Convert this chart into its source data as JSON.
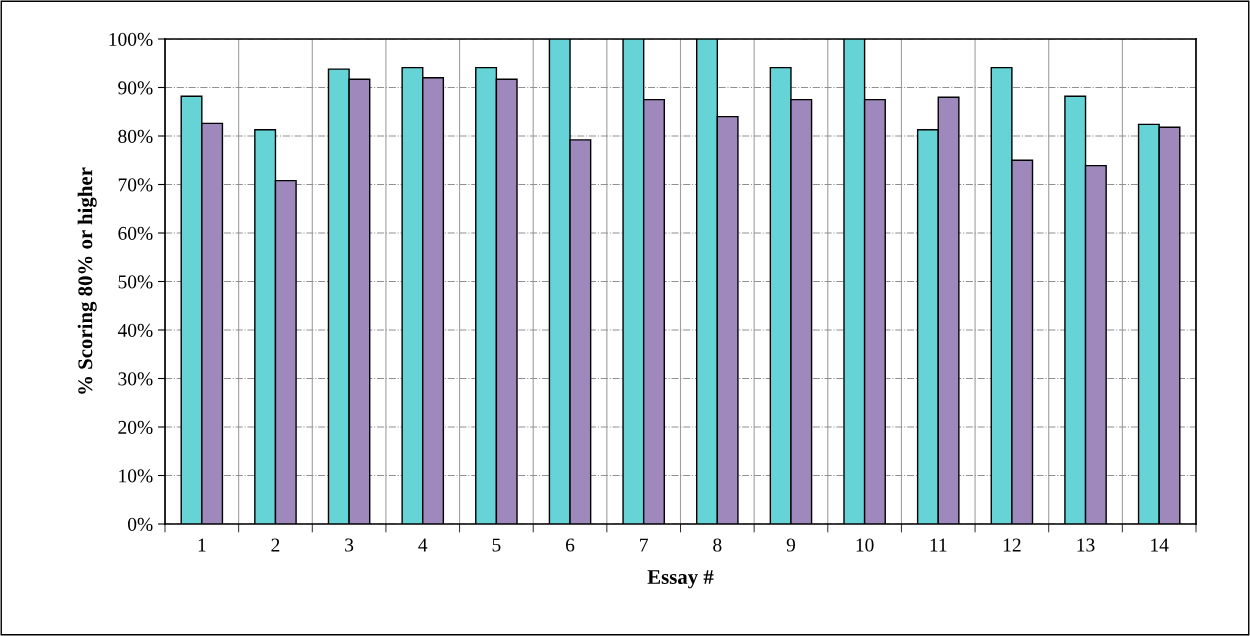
{
  "chart_data": {
    "type": "bar",
    "xlabel": "Essay #",
    "ylabel": "% Scoring 80% or higher",
    "categories": [
      "1",
      "2",
      "3",
      "4",
      "5",
      "6",
      "7",
      "8",
      "9",
      "10",
      "11",
      "12",
      "13",
      "14"
    ],
    "series": [
      {
        "color": "#66d4d6",
        "values": [
          88.2,
          81.3,
          93.8,
          94.1,
          94.1,
          100,
          100,
          100,
          94.1,
          100,
          81.3,
          94.1,
          88.2,
          82.4
        ]
      },
      {
        "color": "#9f88bb",
        "values": [
          82.6,
          70.8,
          91.7,
          92.0,
          91.7,
          79.2,
          87.5,
          84.0,
          87.5,
          87.5,
          88.0,
          75.0,
          73.9,
          81.8
        ]
      }
    ],
    "ylim": [
      0,
      100
    ],
    "yticks": [
      {
        "value": 0,
        "label": "0%"
      },
      {
        "value": 10,
        "label": "10%"
      },
      {
        "value": 20,
        "label": "20%"
      },
      {
        "value": 30,
        "label": "30%"
      },
      {
        "value": 40,
        "label": "40%"
      },
      {
        "value": 50,
        "label": "50%"
      },
      {
        "value": 60,
        "label": "60%"
      },
      {
        "value": 70,
        "label": "70%"
      },
      {
        "value": 80,
        "label": "80%"
      },
      {
        "value": 90,
        "label": "90%"
      },
      {
        "value": 100,
        "label": "100%"
      }
    ],
    "grid": true,
    "legend": false
  }
}
